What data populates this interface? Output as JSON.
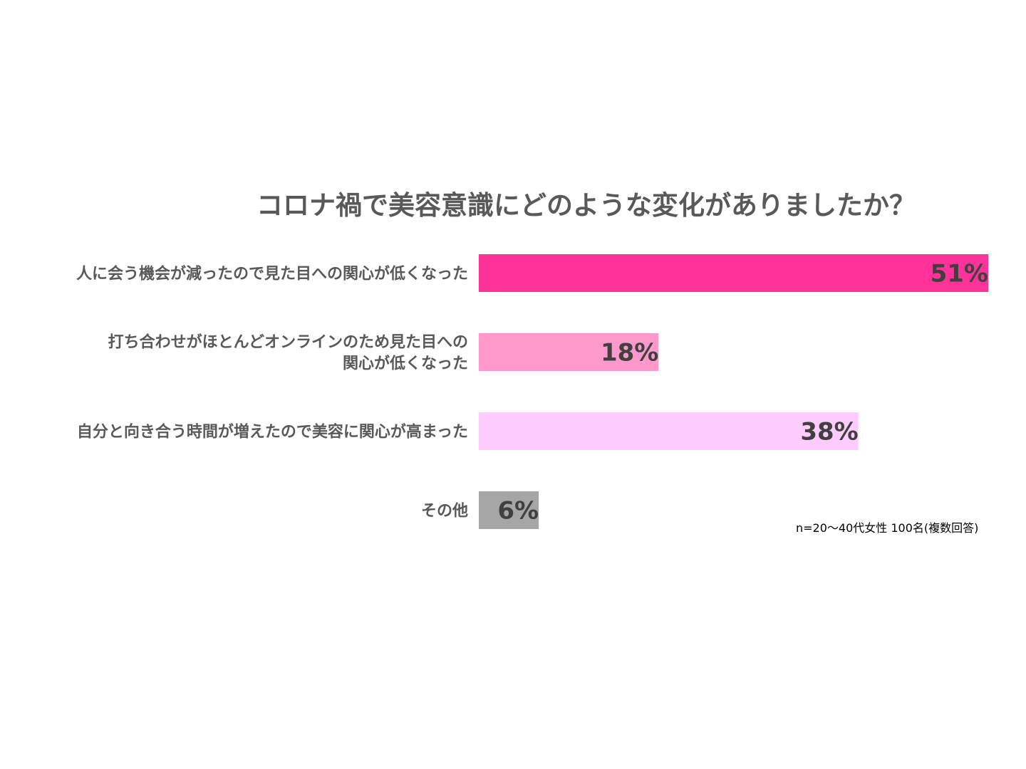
{
  "chart_data": {
    "type": "bar",
    "orientation": "horizontal",
    "title": "コロナ禍で美容意識にどのような変化がありましたか？",
    "categories": [
      [
        "人に会う機会が減ったので見た目への関心が低くなった"
      ],
      [
        "打ち合わせがほとんどオンラインのため見た目への",
        "関心が低くなった"
      ],
      [
        "自分と向き合う時間が増えたので美容に関心が高まった"
      ],
      [
        "その他"
      ]
    ],
    "values": [
      51,
      18,
      38,
      6
    ],
    "data_labels": [
      "51%",
      "18%",
      "38%",
      "6%"
    ],
    "unit": "%",
    "colors": [
      "#ff3399",
      "#ff99cc",
      "#ffccff",
      "#a6a6a6"
    ],
    "xlim": [
      0,
      51
    ],
    "grid": false,
    "legend": "none",
    "note": "n=20～40代女性 100名(複数回答)"
  }
}
